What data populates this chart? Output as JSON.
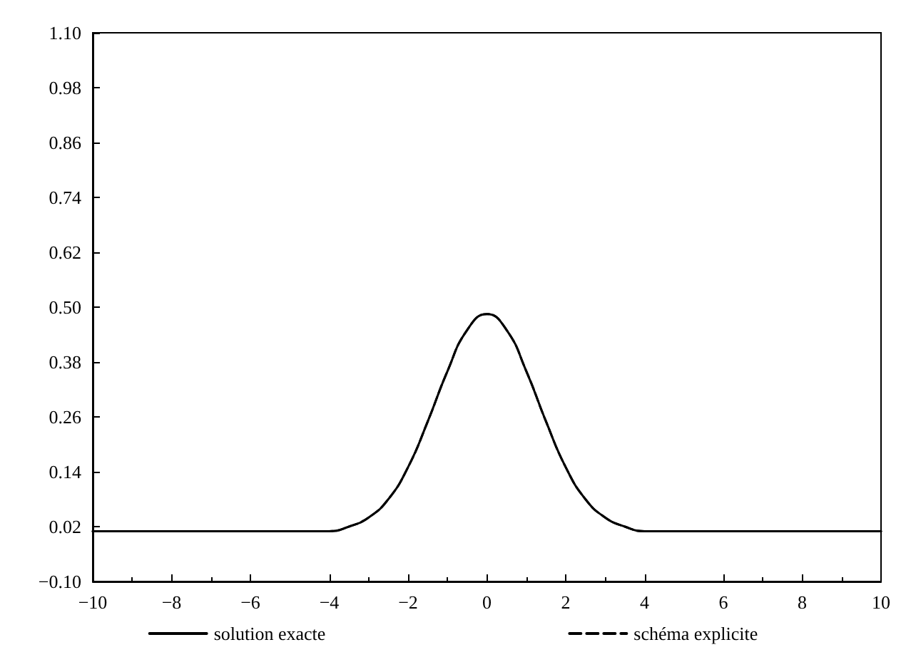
{
  "chart_data": {
    "type": "line",
    "x": [
      -10,
      -6,
      -4,
      -3.5,
      -3,
      -2.5,
      -2,
      -1.5,
      -1,
      -0.5,
      0,
      0.5,
      1,
      1.5,
      2,
      2.5,
      3,
      3.5,
      4,
      6,
      10
    ],
    "series": [
      {
        "name": "solution exacte",
        "color": "#000000",
        "line_style": "solid",
        "values": [
          0.01,
          0.01,
          0.01,
          0.02,
          0.04,
          0.08,
          0.15,
          0.25,
          0.36,
          0.45,
          0.485,
          0.45,
          0.36,
          0.25,
          0.15,
          0.08,
          0.04,
          0.02,
          0.01,
          0.01,
          0.01
        ]
      },
      {
        "name": "schéma explicite",
        "color": "#000000",
        "line_style": "dashed",
        "values": [
          0.01,
          0.01,
          0.01,
          0.02,
          0.04,
          0.08,
          0.15,
          0.25,
          0.36,
          0.45,
          0.485,
          0.45,
          0.36,
          0.25,
          0.15,
          0.08,
          0.04,
          0.02,
          0.01,
          0.01,
          0.01
        ]
      }
    ],
    "xlim": [
      -10,
      10
    ],
    "xticks": [
      -10,
      -8,
      -6,
      -4,
      -2,
      0,
      2,
      4,
      6,
      8,
      10
    ],
    "ylim": [
      -0.1,
      1.1
    ],
    "yticks": [
      {
        "value": -0.1,
        "label": "−0.10"
      },
      {
        "value": 0.02,
        "label": "0.02"
      },
      {
        "value": 0.14,
        "label": "0.14"
      },
      {
        "value": 0.26,
        "label": "0.26"
      },
      {
        "value": 0.38,
        "label": "0.38"
      },
      {
        "value": 0.5,
        "label": "0.50"
      },
      {
        "value": 0.62,
        "label": "0.62"
      },
      {
        "value": 0.74,
        "label": "0.74"
      },
      {
        "value": 0.86,
        "label": "0.86"
      },
      {
        "value": 0.98,
        "label": "0.98"
      },
      {
        "value": 1.1,
        "label": "1.10"
      }
    ],
    "legend": "bottom",
    "marker": "none",
    "grid": false
  }
}
